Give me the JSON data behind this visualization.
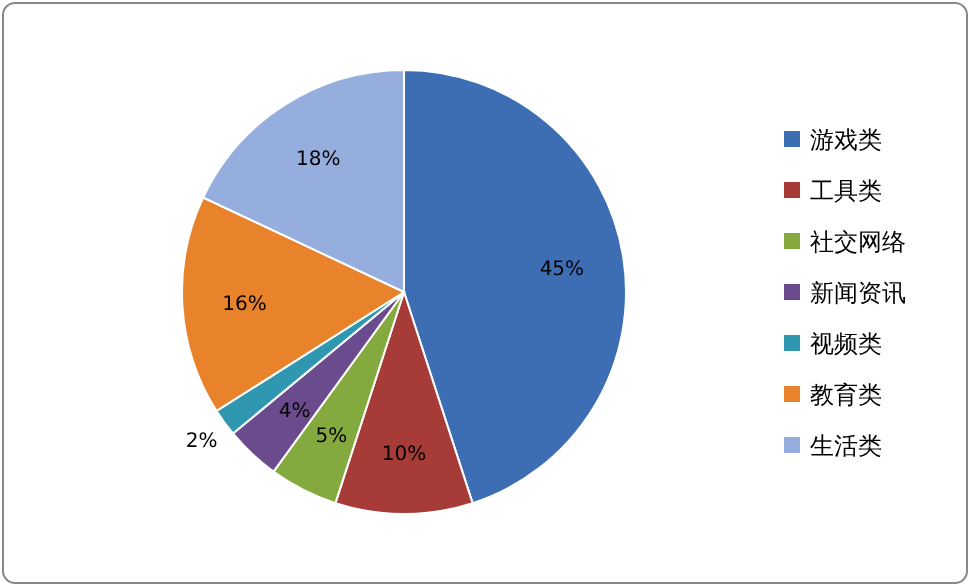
{
  "chart_data": {
    "type": "pie",
    "categories": [
      "游戏类",
      "工具类",
      "社交网络",
      "新闻资讯",
      "视频类",
      "教育类",
      "生活类"
    ],
    "values": [
      45,
      10,
      5,
      4,
      2,
      16,
      18
    ],
    "colors": [
      "#3d6eb4",
      "#a63b37",
      "#84aa3f",
      "#6a4b8e",
      "#2f98b0",
      "#e8822b",
      "#95aede"
    ],
    "value_labels": [
      "45%",
      "10%",
      "5%",
      "4%",
      "2%",
      "16%",
      "18%"
    ],
    "legend": "right"
  }
}
